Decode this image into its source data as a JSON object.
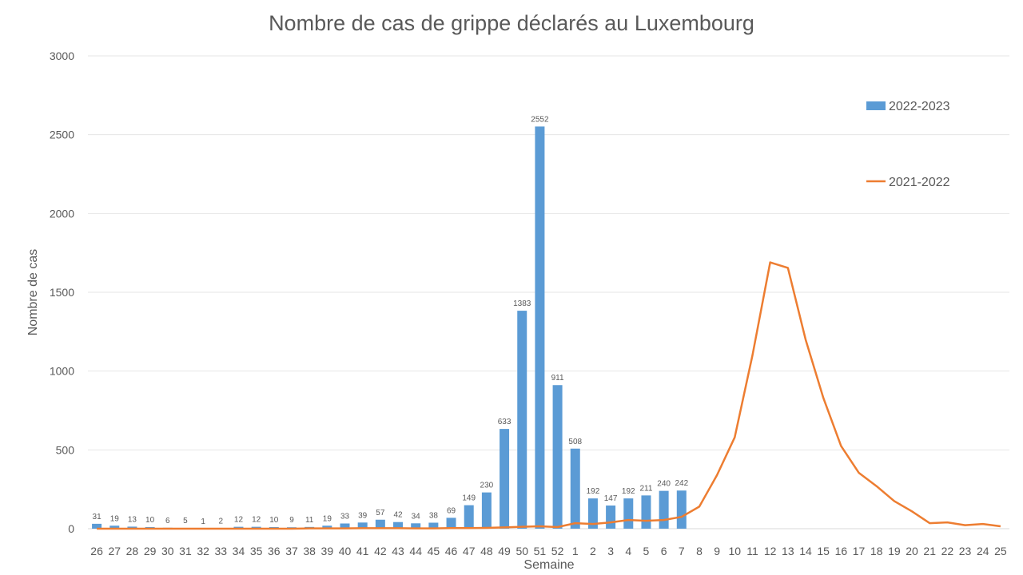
{
  "chart_data": {
    "type": "bar+line",
    "title": "Nombre de cas de grippe déclarés au Luxembourg",
    "xlabel": "Semaine",
    "ylabel": "Nombre de cas",
    "ylim": [
      0,
      3000
    ],
    "yticks": [
      0,
      500,
      1000,
      1500,
      2000,
      2500,
      3000
    ],
    "grid": true,
    "legend_position": "right",
    "categories": [
      "26",
      "27",
      "28",
      "29",
      "30",
      "31",
      "32",
      "33",
      "34",
      "35",
      "36",
      "37",
      "38",
      "39",
      "40",
      "41",
      "42",
      "43",
      "44",
      "45",
      "46",
      "47",
      "48",
      "49",
      "50",
      "51",
      "52",
      "1",
      "2",
      "3",
      "4",
      "5",
      "6",
      "7",
      "8",
      "9",
      "10",
      "11",
      "12",
      "13",
      "14",
      "15",
      "16",
      "17",
      "18",
      "19",
      "20",
      "21",
      "22",
      "23",
      "24",
      "25"
    ],
    "series": [
      {
        "name": "2022-2023",
        "type": "bar",
        "color": "#5B9BD5",
        "values": [
          31,
          19,
          13,
          10,
          6,
          5,
          1,
          2,
          12,
          12,
          10,
          9,
          11,
          19,
          33,
          39,
          57,
          42,
          34,
          38,
          69,
          149,
          230,
          633,
          1383,
          2552,
          911,
          508,
          192,
          147,
          192,
          211,
          240,
          242,
          null,
          null,
          null,
          null,
          null,
          null,
          null,
          null,
          null,
          null,
          null,
          null,
          null,
          null,
          null,
          null,
          null,
          null
        ]
      },
      {
        "name": "2021-2022",
        "type": "line",
        "color": "#ED7D31",
        "values": [
          0,
          0,
          0,
          0,
          0,
          0,
          0,
          0,
          0,
          0,
          0,
          0,
          2,
          2,
          2,
          3,
          3,
          3,
          2,
          2,
          4,
          4,
          5,
          8,
          12,
          15,
          10,
          35,
          30,
          40,
          55,
          50,
          55,
          75,
          140,
          340,
          580,
          1100,
          1690,
          1655,
          1200,
          830,
          525,
          355,
          270,
          175,
          110,
          35,
          40,
          22,
          30,
          15
        ]
      }
    ]
  }
}
